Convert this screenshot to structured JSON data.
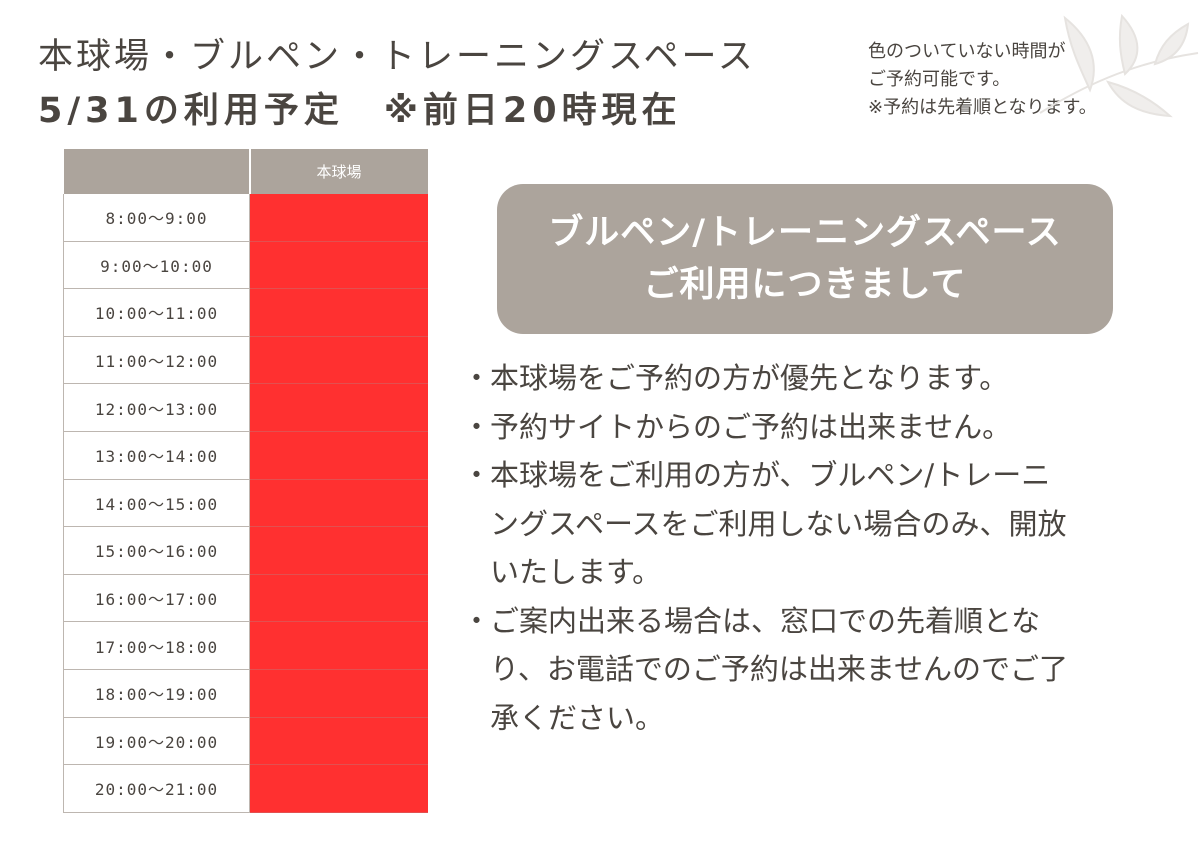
{
  "header": {
    "title_line1": "本球場・ブルペン・トレーニングスペース",
    "title_line2": "5/31の利用予定　※前日20時現在"
  },
  "note": {
    "line1": "色のついていない時間が",
    "line2": "ご予約可能です。",
    "line3": "※予約は先着順となります。"
  },
  "schedule": {
    "column_header": "本球場",
    "reserved_color": "#ff3030",
    "rows": [
      {
        "time": "8:00〜9:00",
        "reserved": true
      },
      {
        "time": "9:00〜10:00",
        "reserved": true
      },
      {
        "time": "10:00〜11:00",
        "reserved": true
      },
      {
        "time": "11:00〜12:00",
        "reserved": true
      },
      {
        "time": "12:00〜13:00",
        "reserved": true
      },
      {
        "time": "13:00〜14:00",
        "reserved": true
      },
      {
        "time": "14:00〜15:00",
        "reserved": true
      },
      {
        "time": "15:00〜16:00",
        "reserved": true
      },
      {
        "time": "16:00〜17:00",
        "reserved": true
      },
      {
        "time": "17:00〜18:00",
        "reserved": true
      },
      {
        "time": "18:00〜19:00",
        "reserved": true
      },
      {
        "time": "19:00〜20:00",
        "reserved": true
      },
      {
        "time": "20:00〜21:00",
        "reserved": true
      }
    ]
  },
  "banner": {
    "line1": "ブルペン/トレーニングスペース",
    "line2": "ご利用につきまして"
  },
  "rules": {
    "bullet": "・",
    "items": [
      [
        "本球場をご予約の方が優先となります。"
      ],
      [
        "予約サイトからのご予約は出来ません。"
      ],
      [
        "本球場をご利用の方が、ブルペン/トレーニ",
        "ングスペースをご利用しない場合のみ、開放",
        "いたします。"
      ],
      [
        "ご案内出来る場合は、窓口での先着順とな",
        "り、お電話でのご予約は出来ませんのでご了",
        "承ください。"
      ]
    ]
  }
}
